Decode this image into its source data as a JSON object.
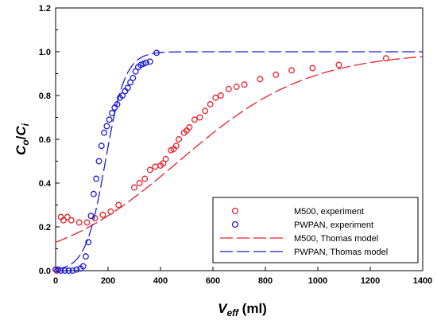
{
  "chart_data": {
    "type": "scatter",
    "xlabel": {
      "main": "V",
      "sub": "eff",
      "unit": " (ml)"
    },
    "ylabel": {
      "main1": "C",
      "sub1": "o",
      "sep": "/",
      "main2": "C",
      "sub2": "i"
    },
    "xlim": [
      0,
      1400
    ],
    "ylim": [
      0,
      1.2
    ],
    "xticks": [
      0,
      200,
      400,
      600,
      800,
      1000,
      1200,
      1400
    ],
    "yticks": [
      0.0,
      0.2,
      0.4,
      0.6,
      0.8,
      1.0,
      1.2
    ],
    "ytick_labels": [
      "0.0",
      "0.2",
      "0.4",
      "0.6",
      "0.8",
      "1.0",
      "1.2"
    ],
    "grid": false,
    "legend_position": "bottom-right",
    "series": [
      {
        "name": "M500, experiment",
        "kind": "scatter",
        "color": "#e8222a",
        "x": [
          5,
          20,
          30,
          45,
          60,
          90,
          120,
          150,
          180,
          210,
          240,
          300,
          320,
          340,
          360,
          380,
          400,
          410,
          420,
          440,
          450,
          460,
          470,
          490,
          500,
          510,
          530,
          550,
          570,
          590,
          610,
          630,
          660,
          690,
          720,
          780,
          840,
          900,
          980,
          1080,
          1260
        ],
        "y": [
          0.0,
          0.245,
          0.23,
          0.245,
          0.23,
          0.22,
          0.22,
          0.24,
          0.255,
          0.27,
          0.3,
          0.38,
          0.4,
          0.42,
          0.46,
          0.475,
          0.48,
          0.49,
          0.51,
          0.55,
          0.555,
          0.57,
          0.6,
          0.63,
          0.64,
          0.655,
          0.69,
          0.7,
          0.73,
          0.76,
          0.79,
          0.8,
          0.83,
          0.84,
          0.85,
          0.875,
          0.895,
          0.915,
          0.925,
          0.94,
          0.97
        ]
      },
      {
        "name": "PWPAN, experiment",
        "kind": "scatter",
        "color": "#1c1cd6",
        "x": [
          0,
          10,
          20,
          35,
          50,
          65,
          80,
          95,
          105,
          115,
          125,
          135,
          145,
          155,
          165,
          175,
          185,
          195,
          205,
          215,
          225,
          235,
          245,
          255,
          265,
          275,
          285,
          295,
          305,
          315,
          325,
          335,
          345,
          360,
          385
        ],
        "y": [
          0.005,
          0.005,
          0.0,
          0.0,
          0.0,
          0.0,
          0.005,
          0.01,
          0.02,
          0.065,
          0.13,
          0.25,
          0.35,
          0.42,
          0.5,
          0.57,
          0.63,
          0.66,
          0.69,
          0.72,
          0.745,
          0.76,
          0.79,
          0.8,
          0.82,
          0.835,
          0.86,
          0.88,
          0.91,
          0.93,
          0.94,
          0.945,
          0.95,
          0.955,
          0.995
        ]
      },
      {
        "name": "M500, Thomas model",
        "kind": "line",
        "dash": "long",
        "color": "#e8222a",
        "model": {
          "k": 0.00405,
          "v0": 470
        }
      },
      {
        "name": "PWPAN, Thomas model",
        "kind": "line",
        "dash": "long",
        "color": "#1c1cd6",
        "model": {
          "k": 0.0265,
          "v0": 190
        }
      }
    ]
  }
}
